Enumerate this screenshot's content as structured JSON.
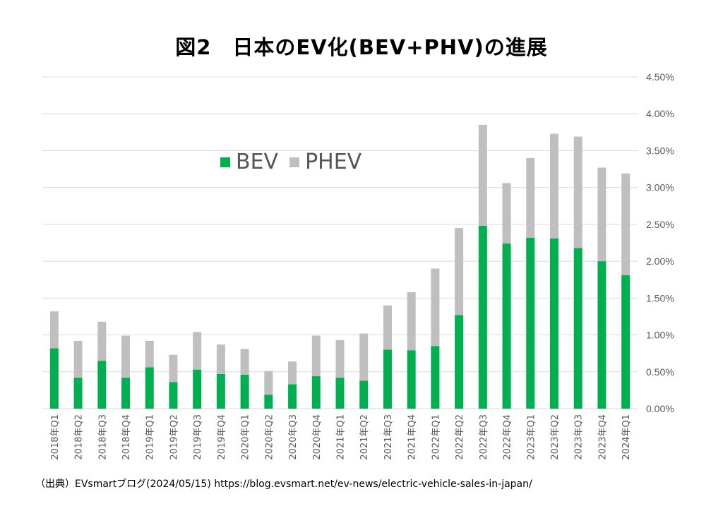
{
  "title": "図2　日本のEV化(BEV+PHV)の進展",
  "source": "（出典）EVsmartブログ(2024/05/15) https://blog.evsmart.net/ev-news/electric-vehicle-sales-in-japan/",
  "colors": {
    "bev": "#00b050",
    "phev": "#bfbfbf",
    "grid": "#d9d9d9",
    "axis_text": "#595959"
  },
  "legend": {
    "bev": "BEV",
    "phev": "PHEV"
  },
  "chart_data": {
    "type": "bar",
    "stacked": true,
    "title": "図2　日本のEV化(BEV+PHV)の進展",
    "xlabel": "",
    "ylabel": "",
    "ylim": [
      0,
      4.5
    ],
    "yticks": [
      "0.00%",
      "0.50%",
      "1.00%",
      "1.50%",
      "2.00%",
      "2.50%",
      "3.00%",
      "3.50%",
      "4.00%",
      "4.50%"
    ],
    "grid": true,
    "legend_position": "top-left",
    "categories": [
      "2018年Q1",
      "2018年Q2",
      "2018年Q3",
      "2018年Q4",
      "2019年Q1",
      "2019年Q2",
      "2019年Q3",
      "2019年Q4",
      "2020年Q1",
      "2020年Q2",
      "2020年Q3",
      "2020年Q4",
      "2021年Q1",
      "2021年Q2",
      "2021年Q3",
      "2021年Q4",
      "2022年Q1",
      "2022年Q2",
      "2022年Q3",
      "2022年Q4",
      "2023年Q1",
      "2023年Q2",
      "2023年Q3",
      "2023年Q4",
      "2024年Q1"
    ],
    "series": [
      {
        "name": "BEV",
        "values": [
          0.82,
          0.42,
          0.65,
          0.42,
          0.56,
          0.36,
          0.53,
          0.47,
          0.46,
          0.19,
          0.33,
          0.44,
          0.42,
          0.38,
          0.8,
          0.79,
          0.85,
          1.27,
          2.48,
          2.24,
          2.32,
          2.31,
          2.18,
          2.0,
          1.81
        ]
      },
      {
        "name": "PHEV",
        "values": [
          0.5,
          0.5,
          0.53,
          0.57,
          0.36,
          0.37,
          0.51,
          0.4,
          0.35,
          0.32,
          0.31,
          0.55,
          0.51,
          0.64,
          0.6,
          0.79,
          1.05,
          1.18,
          1.37,
          0.82,
          1.08,
          1.42,
          1.51,
          1.27,
          1.38
        ]
      }
    ]
  }
}
